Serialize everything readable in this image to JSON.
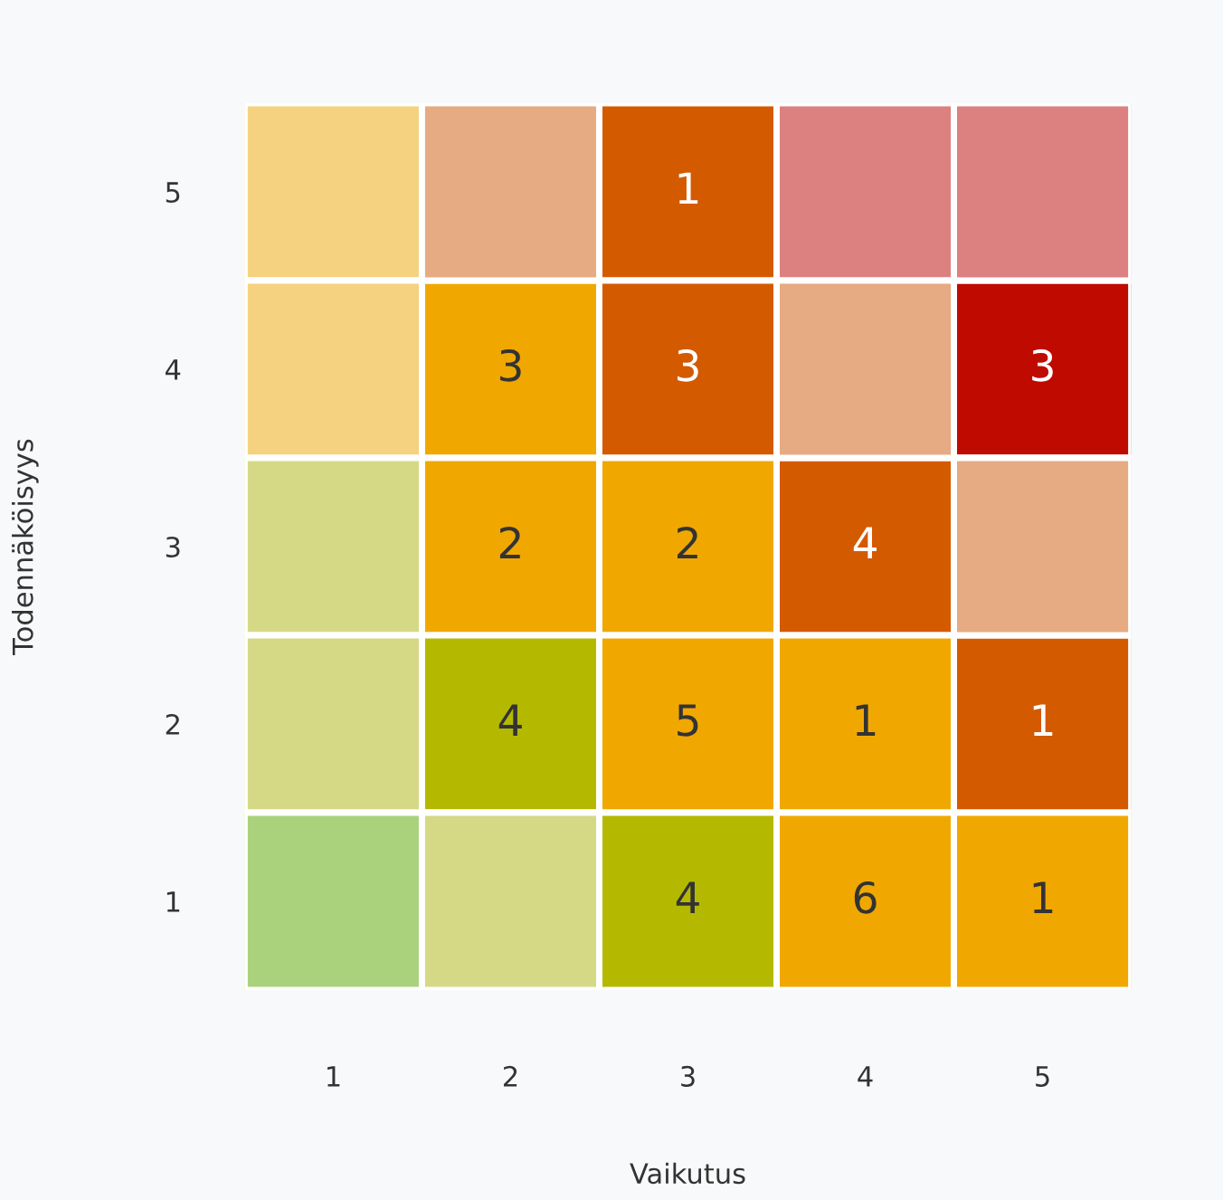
{
  "chart_data": {
    "type": "heatmap",
    "xlabel": "Vaikutus",
    "ylabel": "Todennäköisyys",
    "categories": [
      "1",
      "2",
      "3",
      "4",
      "5"
    ],
    "y_categories": [
      "5",
      "4",
      "3",
      "2",
      "1"
    ],
    "cells": [
      [
        null,
        null,
        1,
        null,
        null
      ],
      [
        null,
        3,
        3,
        null,
        3
      ],
      [
        null,
        2,
        2,
        4,
        null
      ],
      [
        null,
        4,
        5,
        1,
        1
      ],
      [
        null,
        null,
        4,
        6,
        1
      ]
    ],
    "cell_labels": [
      [
        null,
        null,
        "1",
        null,
        null
      ],
      [
        null,
        "3",
        "3",
        null,
        "3"
      ],
      [
        null,
        "2",
        "2",
        "4",
        null
      ],
      [
        null,
        "4",
        "5",
        "1",
        "1"
      ],
      [
        null,
        null,
        "4",
        "6",
        "1"
      ]
    ],
    "colors": [
      [
        "#f5d280",
        "#e6ab82",
        "#d45a00",
        "#dc8080",
        "#dc8080"
      ],
      [
        "#f5d280",
        "#f0a800",
        "#d45a00",
        "#e6ab82",
        "#bf0a00"
      ],
      [
        "#d5d985",
        "#f0a800",
        "#f0a800",
        "#d45a00",
        "#e6ab82"
      ],
      [
        "#d5d985",
        "#b4b900",
        "#f0a800",
        "#f0a800",
        "#d45a00"
      ],
      [
        "#aad27d",
        "#d5d985",
        "#b4b900",
        "#f0a800",
        "#f0a800"
      ]
    ]
  }
}
